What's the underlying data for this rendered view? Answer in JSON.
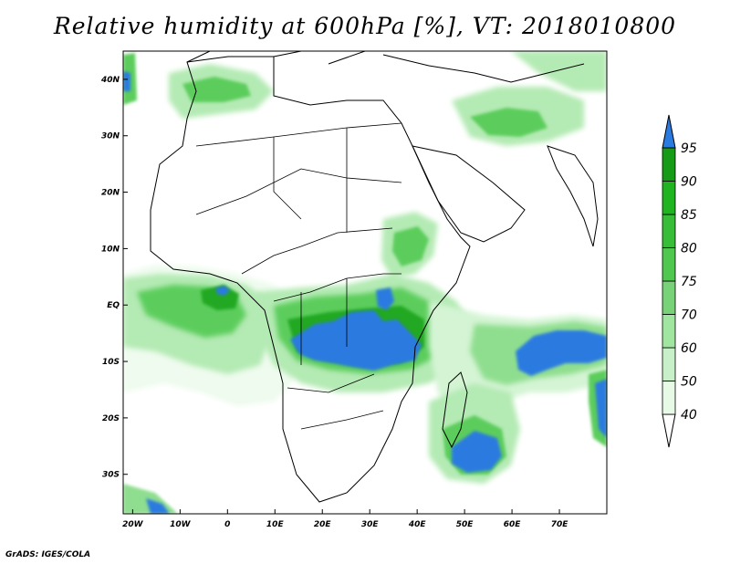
{
  "title": "Relative humidity at 600hPa [%], VT: 2018010800",
  "credit": "GrADS: IGES/COLA",
  "map": {
    "lon_range": [
      -22,
      80
    ],
    "lat_range": [
      -37,
      45
    ],
    "lon_ticks": [
      {
        "value": -20,
        "label": "20W"
      },
      {
        "value": -10,
        "label": "10W"
      },
      {
        "value": 0,
        "label": "0"
      },
      {
        "value": 10,
        "label": "10E"
      },
      {
        "value": 20,
        "label": "20E"
      },
      {
        "value": 30,
        "label": "30E"
      },
      {
        "value": 40,
        "label": "40E"
      },
      {
        "value": 50,
        "label": "50E"
      },
      {
        "value": 60,
        "label": "60E"
      },
      {
        "value": 70,
        "label": "70E"
      }
    ],
    "lat_ticks": [
      {
        "value": 40,
        "label": "40N"
      },
      {
        "value": 30,
        "label": "30N"
      },
      {
        "value": 20,
        "label": "20N"
      },
      {
        "value": 10,
        "label": "10N"
      },
      {
        "value": 0,
        "label": "EQ"
      },
      {
        "value": -10,
        "label": "10S"
      },
      {
        "value": -20,
        "label": "20S"
      },
      {
        "value": -30,
        "label": "30S"
      }
    ]
  },
  "colorbar": {
    "levels": [
      "40",
      "50",
      "60",
      "70",
      "75",
      "80",
      "85",
      "90",
      "95"
    ],
    "colors": [
      "#ffffff",
      "#e6fae6",
      "#c8f0c8",
      "#a0e6a0",
      "#78d278",
      "#50c850",
      "#37bd37",
      "#20b420",
      "#169b16",
      "#2a7ae0"
    ]
  },
  "palette": {
    "rh40": "#eefbee",
    "rh50": "#d4f4d4",
    "rh60": "#b4eab4",
    "rh70": "#8fde8f",
    "rh80": "#5ccd5c",
    "rh85": "#3dbf3d",
    "rh90": "#22a822",
    "rh95": "#2a7ae0",
    "coast": "#000000"
  }
}
